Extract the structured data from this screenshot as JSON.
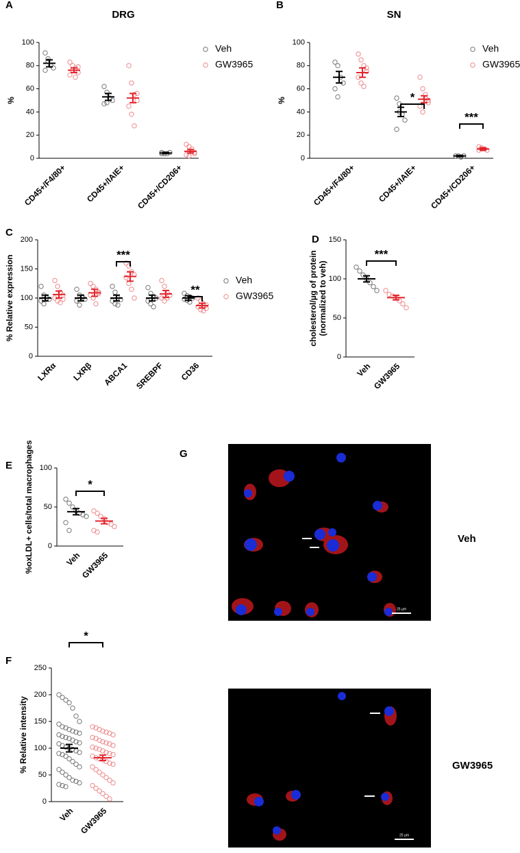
{
  "chart_data": [
    {
      "type": "dot",
      "panel_label": "A",
      "title": "DRG",
      "y_label": "%",
      "categories": [
        "CD45+/F4/80+",
        "CD45+/IAIE+",
        "CD45+/CD206+"
      ],
      "ylim": [
        0,
        100
      ],
      "yticks": [
        0,
        20,
        40,
        60,
        80,
        100
      ],
      "series": [
        {
          "name": "Veh",
          "color": "#000000",
          "point_color": "#777777",
          "means": [
            82,
            53,
            4.5
          ],
          "sems": [
            3,
            3,
            0.5
          ],
          "points": [
            [
              91,
              86,
              80,
              78,
              76,
              84
            ],
            [
              62,
              57,
              52,
              50,
              47,
              48
            ],
            [
              5,
              4,
              4,
              5,
              4,
              4
            ]
          ]
        },
        {
          "name": "GW3965",
          "color": "#e3242b",
          "point_color": "#ee8a8d",
          "means": [
            76,
            52,
            6
          ],
          "sems": [
            2,
            4,
            1.5
          ],
          "points": [
            [
              83,
              80,
              78,
              74,
              72,
              76,
              70,
              79
            ],
            [
              80,
              65,
              55,
              50,
              45,
              38,
              28,
              56
            ],
            [
              12,
              10,
              8,
              5,
              3,
              2,
              6,
              4
            ]
          ]
        }
      ]
    },
    {
      "type": "dot",
      "panel_label": "B",
      "title": "SN",
      "y_label": "%",
      "categories": [
        "CD45+/F4/80+",
        "CD45+/IAIE+",
        "CD45+/CD206+"
      ],
      "ylim": [
        0,
        100
      ],
      "yticks": [
        0,
        20,
        40,
        60,
        80,
        100
      ],
      "series": [
        {
          "name": "Veh",
          "color": "#000000",
          "point_color": "#777777",
          "means": [
            70,
            40,
            2
          ],
          "sems": [
            5,
            4,
            0.5
          ],
          "points": [
            [
              83,
              80,
              70,
              65,
              60,
              53
            ],
            [
              52,
              47,
              38,
              33,
              25,
              40
            ],
            [
              2,
              2,
              1,
              2
            ]
          ]
        },
        {
          "name": "GW3965",
          "color": "#e3242b",
          "point_color": "#ee8a8d",
          "means": [
            74,
            51,
            8
          ],
          "sems": [
            4,
            3,
            1
          ],
          "points": [
            [
              90,
              85,
              80,
              75,
              70,
              65,
              62,
              78
            ],
            [
              70,
              60,
              55,
              50,
              45,
              40,
              52,
              48
            ],
            [
              10,
              9,
              8,
              7,
              7,
              8
            ]
          ]
        }
      ],
      "annotations": [
        {
          "text": "*",
          "category": "CD45+/IAIE+"
        },
        {
          "text": "***",
          "category": "CD45+/CD206+"
        }
      ]
    },
    {
      "type": "dot",
      "panel_label": "C",
      "y_label": "% Relative expression",
      "categories": [
        "LXRα",
        "LXRβ",
        "ABCA1",
        "SREBPF",
        "CD36"
      ],
      "ylim": [
        0,
        200
      ],
      "yticks": [
        0,
        50,
        100,
        150,
        200
      ],
      "series": [
        {
          "name": "Veh",
          "color": "#000000",
          "point_color": "#777777",
          "means": [
            100,
            100,
            100,
            100,
            100
          ],
          "sems": [
            5,
            5,
            5,
            5,
            4
          ],
          "points": [
            [
              120,
              105,
              100,
              98,
              95,
              90,
              100
            ],
            [
              115,
              105,
              100,
              98,
              95,
              88,
              102
            ],
            [
              120,
              110,
              100,
              97,
              95,
              90,
              88
            ],
            [
              118,
              108,
              102,
              100,
              95,
              90,
              85
            ],
            [
              108,
              104,
              102,
              100,
              98,
              96,
              93
            ]
          ]
        },
        {
          "name": "GW3965",
          "color": "#e3242b",
          "point_color": "#ee8a8d",
          "means": [
            106,
            109,
            137,
            107,
            87
          ],
          "sems": [
            6,
            6,
            8,
            6,
            4
          ],
          "points": [
            [
              130,
              120,
              110,
              105,
              100,
              95,
              92,
              98
            ],
            [
              125,
              120,
              115,
              110,
              105,
              100,
              90,
              108
            ],
            [
              160,
              155,
              145,
              140,
              135,
              125,
              115,
              100
            ],
            [
              130,
              120,
              110,
              105,
              100,
              95,
              100
            ],
            [
              100,
              95,
              90,
              88,
              85,
              80,
              78,
              82
            ]
          ]
        }
      ],
      "annotations": [
        {
          "text": "***",
          "category": "ABCA1"
        },
        {
          "text": "**",
          "category": "CD36"
        }
      ]
    },
    {
      "type": "dot",
      "panel_label": "D",
      "y_label": [
        "cholesterol/µg of protein",
        "(normalized to veh)"
      ],
      "categories": [
        "Veh",
        "GW3965"
      ],
      "ylim": [
        0,
        150
      ],
      "yticks": [
        0,
        50,
        100,
        150
      ],
      "colors": [
        "#000000",
        "#e3242b"
      ],
      "point_colors": [
        "#777777",
        "#ee8a8d"
      ],
      "means": [
        100,
        76
      ],
      "sems": [
        4,
        3
      ],
      "points": [
        [
          115,
          110,
          105,
          100,
          95,
          90,
          85
        ],
        [
          85,
          80,
          78,
          76,
          72,
          68,
          63
        ]
      ],
      "annotations": [
        {
          "text": "***"
        }
      ]
    },
    {
      "type": "dot",
      "panel_label": "E",
      "y_label": "%oxLDL+ cells/total macrophages",
      "categories": [
        "Veh",
        "GW3965"
      ],
      "ylim": [
        0,
        100
      ],
      "yticks": [
        0,
        50,
        100
      ],
      "colors": [
        "#000000",
        "#e3242b"
      ],
      "point_colors": [
        "#777777",
        "#ee8a8d"
      ],
      "means": [
        44,
        32
      ],
      "sems": [
        4,
        3.5
      ],
      "points": [
        [
          60,
          55,
          50,
          45,
          42,
          40,
          38,
          30,
          20
        ],
        [
          45,
          42,
          38,
          35,
          30,
          28,
          25,
          20,
          18
        ]
      ],
      "annotations": [
        {
          "text": "*"
        }
      ]
    },
    {
      "type": "dot",
      "panel_label": "F",
      "y_label": "% Relative intensity",
      "categories": [
        "Veh",
        "GW3965"
      ],
      "ylim": [
        0,
        250
      ],
      "yticks": [
        0,
        50,
        100,
        150,
        200,
        250
      ],
      "colors": [
        "#000000",
        "#e3242b"
      ],
      "point_colors": [
        "#777777",
        "#ee8a8d"
      ],
      "means": [
        100,
        82
      ],
      "sems": [
        7,
        5
      ],
      "points": [
        [
          200,
          195,
          190,
          185,
          175,
          160,
          150,
          145,
          140,
          138,
          135,
          132,
          130,
          128,
          125,
          122,
          120,
          118,
          115,
          112,
          110,
          108,
          105,
          102,
          100,
          98,
          95,
          92,
          90,
          88,
          85,
          80,
          75,
          70,
          65,
          60,
          55,
          50,
          45,
          40,
          38,
          35,
          32,
          30,
          28
        ],
        [
          140,
          138,
          135,
          132,
          130,
          128,
          125,
          120,
          118,
          115,
          112,
          110,
          108,
          105,
          102,
          100,
          98,
          95,
          92,
          90,
          88,
          85,
          82,
          80,
          78,
          75,
          72,
          70,
          65,
          60,
          55,
          50,
          45,
          40,
          35,
          30,
          25,
          20,
          15,
          10,
          5
        ]
      ],
      "annotations": [
        {
          "text": "*"
        }
      ]
    }
  ],
  "images": {
    "panel_label": "G",
    "items": [
      {
        "label": "Veh",
        "scale_bar": "25 µm"
      },
      {
        "label": "GW3965",
        "scale_bar": "25 µm"
      }
    ]
  }
}
